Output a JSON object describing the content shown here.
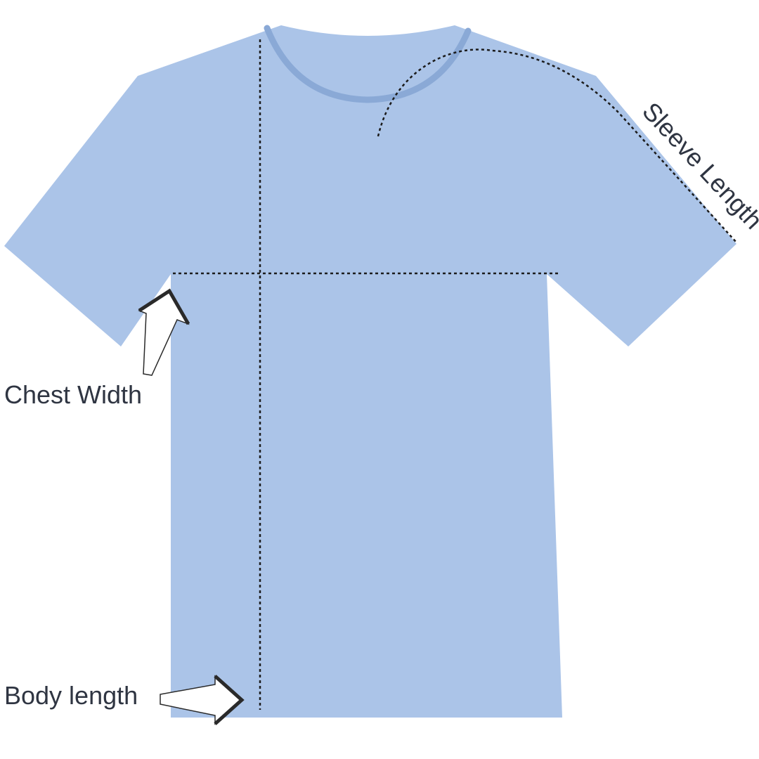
{
  "colors": {
    "shirt": "#abc4e8",
    "collar": "#8aa9d6",
    "text": "#2f3542",
    "measure_line": "#1c1c1c",
    "background": "#ffffff"
  },
  "labels": {
    "sleeve_length": "Sleeve Length",
    "chest_width": "Chest Width",
    "body_length": "Body length"
  },
  "icons": {
    "chest_pointer": "arrow-up-right-icon",
    "body_pointer": "arrow-right-icon"
  }
}
